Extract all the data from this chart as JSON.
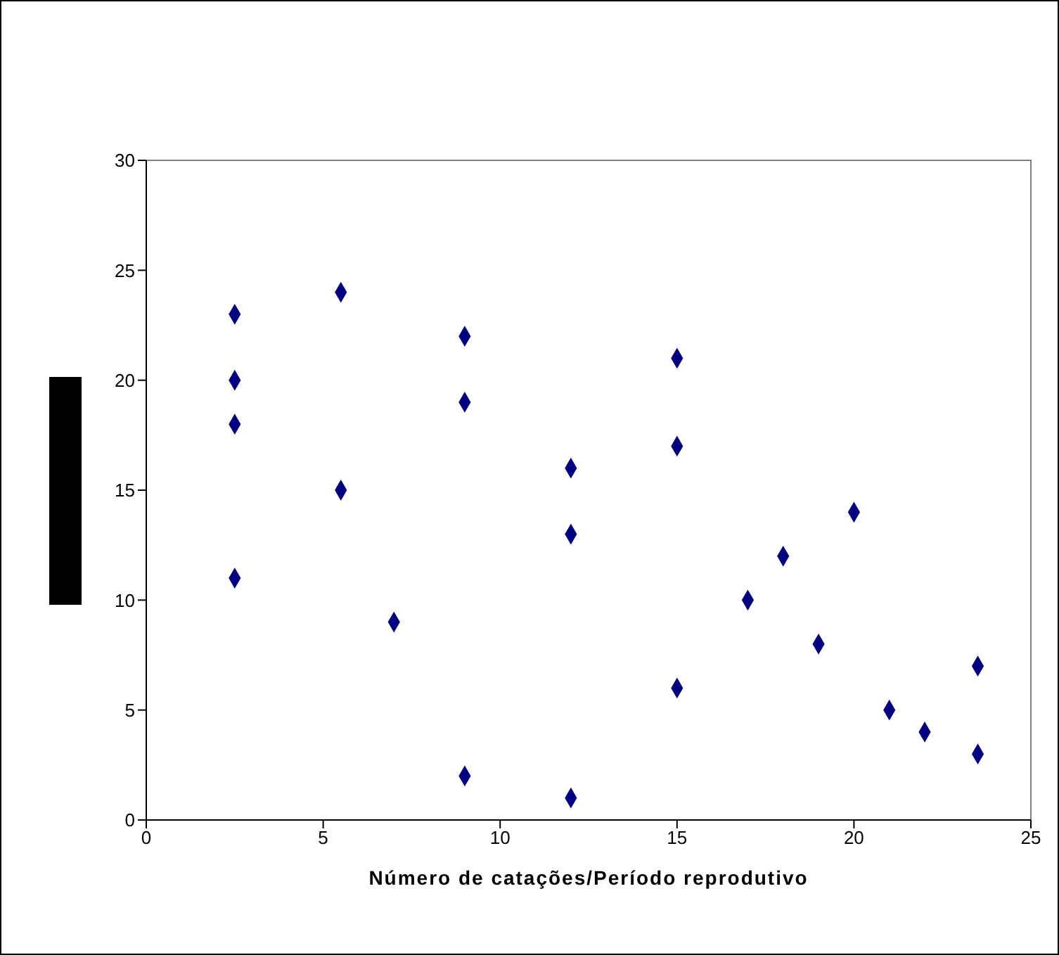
{
  "chart_data": {
    "type": "scatter",
    "xlabel": "Número de catações/Período reprodutivo",
    "x": [
      2.5,
      2.5,
      2.5,
      2.5,
      5.5,
      5.5,
      7,
      9,
      9,
      9,
      12,
      12,
      12,
      15,
      15,
      15,
      17,
      18,
      19,
      20,
      21,
      22,
      23.5,
      23.5
    ],
    "series": [
      {
        "color": "#000080",
        "values": [
          23,
          20,
          18,
          11,
          24,
          15,
          9,
          22,
          19,
          2,
          16,
          13,
          1,
          21,
          17,
          6,
          10,
          12,
          8,
          14,
          5,
          4,
          7,
          3
        ]
      }
    ],
    "xlim": [
      0,
      25
    ],
    "xticks": [
      0,
      5,
      10,
      15,
      20,
      25
    ],
    "ylim": [
      0,
      30
    ],
    "yticks": [
      0,
      5,
      10,
      15,
      20,
      25,
      30
    ],
    "grid": false,
    "legend": false,
    "marker": "diamond"
  }
}
